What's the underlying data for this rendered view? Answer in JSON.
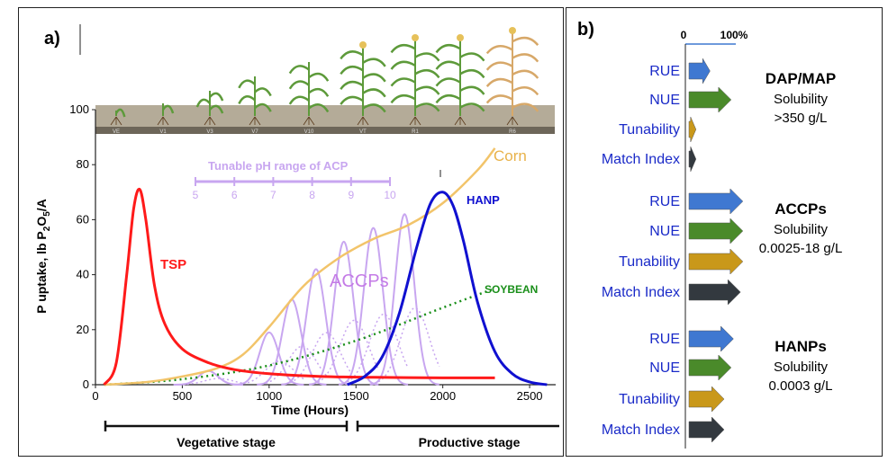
{
  "colors": {
    "tsp": "#ff1a1a",
    "corn": "#f2c46a",
    "accp": "#c8a6f0",
    "accp_label": "#c47be6",
    "hanp": "#1010d0",
    "soybean": "#1a8f1a",
    "rue": "#3f78d1",
    "nue": "#4a8a2a",
    "tunability": "#c9981a",
    "match": "#33393f",
    "label_blue": "#1a2ac8"
  },
  "panel_a": {
    "label": "a)",
    "stages": [
      "VE",
      "V1",
      "V3",
      "V7",
      "V10",
      "VT",
      "R1",
      "",
      "R6"
    ],
    "ph_scale": {
      "title": "Tunable pH range of ACP",
      "ticks": [
        "5",
        "6",
        "7",
        "8",
        "9",
        "10"
      ]
    },
    "labels": {
      "tsp": "TSP",
      "accps": "ACCPs",
      "hanp": "HANP",
      "corn": "Corn",
      "soybean": "SOYBEAN"
    },
    "growth_stages": {
      "vegetative": "Vegetative stage",
      "productive": "Productive stage"
    }
  },
  "chart_data": {
    "type": "line",
    "xlabel": "Time (Hours)",
    "ylabel": "P uptake, lb P2O5/A",
    "xlim": [
      0,
      2650
    ],
    "ylim": [
      0,
      100
    ],
    "x_ticks": [
      0,
      500,
      1000,
      1500,
      2000,
      2500
    ],
    "y_ticks": [
      0,
      20,
      40,
      60,
      80,
      100
    ],
    "series": [
      {
        "name": "TSP",
        "x": [
          50,
          120,
          180,
          220,
          255,
          290,
          340,
          400,
          500,
          650,
          800,
          1000,
          1300,
          1600,
          2000,
          2300
        ],
        "y": [
          0,
          8,
          40,
          64,
          71,
          60,
          36,
          22,
          13,
          8,
          5.5,
          4,
          3,
          2.7,
          2.5,
          2.5
        ]
      },
      {
        "name": "Corn",
        "x": [
          50,
          300,
          500,
          700,
          850,
          1000,
          1200,
          1400,
          1600,
          1800,
          2000,
          2200,
          2300
        ],
        "y": [
          0,
          1,
          3,
          6,
          11,
          21,
          36,
          46,
          53,
          58,
          66,
          78,
          86
        ]
      },
      {
        "name": "HANP",
        "x": [
          1450,
          1550,
          1650,
          1750,
          1850,
          1930,
          2000,
          2060,
          2120,
          2200,
          2300,
          2400,
          2500,
          2600
        ],
        "y": [
          0,
          3,
          10,
          26,
          50,
          66,
          70,
          65,
          52,
          30,
          12,
          4,
          1,
          0
        ]
      },
      {
        "name": "SOYBEAN",
        "x": [
          50,
          500,
          1000,
          1500,
          2000,
          2300
        ],
        "y": [
          0,
          2,
          7,
          16,
          28,
          35
        ]
      },
      {
        "name": "ACCPs",
        "peaks": [
          {
            "center": 650,
            "height": 5
          },
          {
            "center": 1000,
            "height": 19
          },
          {
            "center": 1130,
            "height": 31
          },
          {
            "center": 1270,
            "height": 42
          },
          {
            "center": 1430,
            "height": 52
          },
          {
            "center": 1600,
            "height": 57
          },
          {
            "center": 1780,
            "height": 62
          }
        ]
      }
    ]
  },
  "panel_b": {
    "label": "b)",
    "scale": {
      "min": "0",
      "max": "100%"
    },
    "groups": [
      {
        "name": "DAP/MAP",
        "solubility_label": "Solubility",
        "solubility_value": ">350 g/L",
        "metrics": [
          {
            "label": "RUE",
            "value": 45
          },
          {
            "label": "NUE",
            "value": 90
          },
          {
            "label": "Tunability",
            "value": 15
          },
          {
            "label": "Match Index",
            "value": 15
          }
        ]
      },
      {
        "name": "ACCPs",
        "solubility_label": "Solubility",
        "solubility_value": "0.0025-18 g/L",
        "metrics": [
          {
            "label": "RUE",
            "value": 115
          },
          {
            "label": "NUE",
            "value": 115
          },
          {
            "label": "Tunability",
            "value": 115
          },
          {
            "label": "Match Index",
            "value": 110
          }
        ]
      },
      {
        "name": "HANPs",
        "solubility_label": "Solubility",
        "solubility_value": "0.0003 g/L",
        "metrics": [
          {
            "label": "RUE",
            "value": 95
          },
          {
            "label": "NUE",
            "value": 90
          },
          {
            "label": "Tunability",
            "value": 75
          },
          {
            "label": "Match Index",
            "value": 75
          }
        ]
      }
    ]
  }
}
